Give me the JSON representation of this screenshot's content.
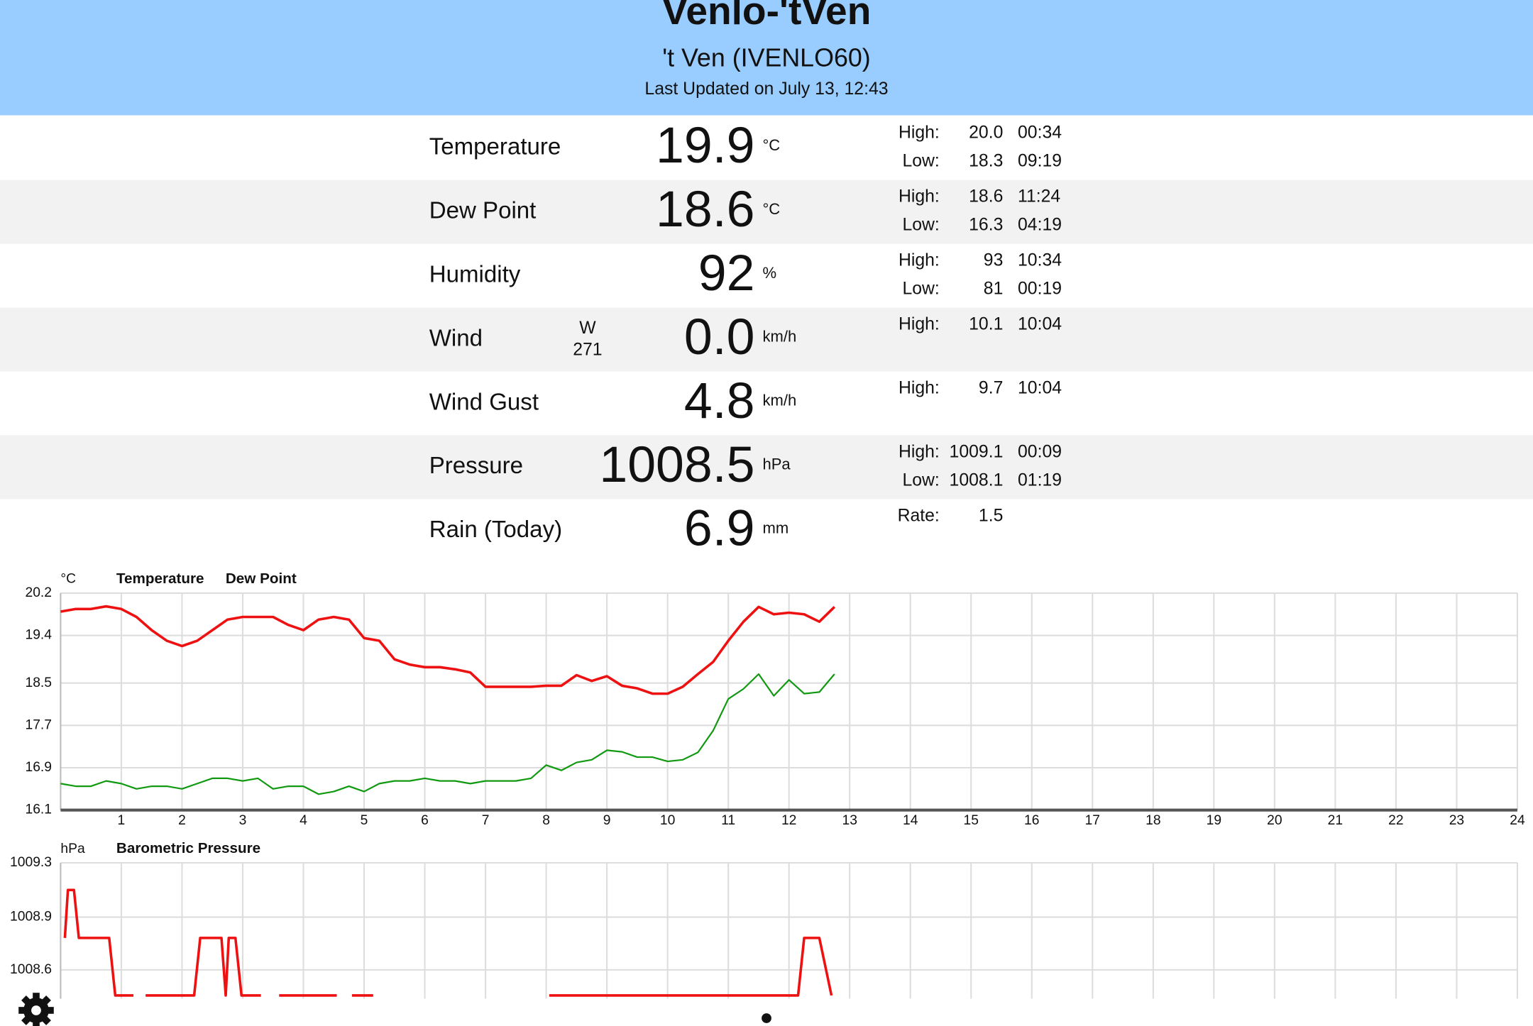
{
  "header": {
    "title": "Venlo-'tVen",
    "subtitle": "'t Ven (IVENLO60)",
    "updated": "Last Updated on July 13, 12:43"
  },
  "rows": [
    {
      "label": "Temperature",
      "value": "19.9",
      "unit": "°C",
      "stats": [
        {
          "label": "High:",
          "value": "20.0",
          "time": "00:34"
        },
        {
          "label": "Low:",
          "value": "18.3",
          "time": "09:19"
        }
      ]
    },
    {
      "label": "Dew Point",
      "value": "18.6",
      "unit": "°C",
      "stats": [
        {
          "label": "High:",
          "value": "18.6",
          "time": "11:24"
        },
        {
          "label": "Low:",
          "value": "16.3",
          "time": "04:19"
        }
      ]
    },
    {
      "label": "Humidity",
      "value": "92",
      "unit": "%",
      "stats": [
        {
          "label": "High:",
          "value": "93",
          "time": "10:34"
        },
        {
          "label": "Low:",
          "value": "81",
          "time": "00:19"
        }
      ]
    },
    {
      "label": "Wind",
      "direction": "W",
      "bearing": "271",
      "value": "0.0",
      "unit": "km/h",
      "stats": [
        {
          "label": "High:",
          "value": "10.1",
          "time": "10:04"
        }
      ]
    },
    {
      "label": "Wind Gust",
      "value": "4.8",
      "unit": "km/h",
      "stats": [
        {
          "label": "High:",
          "value": "9.7",
          "time": "10:04"
        }
      ]
    },
    {
      "label": "Pressure",
      "value": "1008.5",
      "unit": "hPa",
      "stats": [
        {
          "label": "High:",
          "value": "1009.1",
          "time": "00:09"
        },
        {
          "label": "Low:",
          "value": "1008.1",
          "time": "01:19"
        }
      ]
    },
    {
      "label": "Rain (Today)",
      "value": "6.9",
      "unit": "mm",
      "stats": [
        {
          "label": "Rate:",
          "value": "1.5"
        }
      ]
    }
  ],
  "chart_data": [
    {
      "type": "line",
      "ylabel": "°C",
      "x": [
        0,
        0.25,
        0.5,
        0.75,
        1,
        1.25,
        1.5,
        1.75,
        2,
        2.25,
        2.5,
        2.75,
        3,
        3.25,
        3.5,
        3.75,
        4,
        4.25,
        4.5,
        4.75,
        5,
        5.25,
        5.5,
        5.75,
        6,
        6.25,
        6.5,
        6.75,
        7,
        7.25,
        7.5,
        7.75,
        8,
        8.25,
        8.5,
        8.75,
        9,
        9.25,
        9.5,
        9.75,
        10,
        10.25,
        10.5,
        10.75,
        11,
        11.25,
        11.5,
        11.75,
        12,
        12.25,
        12.5,
        12.75
      ],
      "xlim": [
        0,
        24
      ],
      "xticks": [
        1,
        2,
        3,
        4,
        5,
        6,
        7,
        8,
        9,
        10,
        11,
        12,
        13,
        14,
        15,
        16,
        17,
        18,
        19,
        20,
        21,
        22,
        23,
        24
      ],
      "ylim": [
        16.1,
        20.2
      ],
      "yticks": [
        16.1,
        16.9,
        17.7,
        18.5,
        19.4,
        20.2
      ],
      "grid": true,
      "series": [
        {
          "name": "Temperature",
          "color": "#ee1111",
          "values": [
            19.85,
            19.9,
            19.9,
            19.95,
            19.9,
            19.75,
            19.5,
            19.3,
            19.2,
            19.3,
            19.5,
            19.7,
            19.75,
            19.75,
            19.75,
            19.6,
            19.5,
            19.7,
            19.75,
            19.7,
            19.35,
            19.3,
            18.95,
            18.85,
            18.8,
            18.8,
            18.76,
            18.7,
            18.43,
            18.43,
            18.43,
            18.43,
            18.45,
            18.45,
            18.65,
            18.54,
            18.63,
            18.45,
            18.4,
            18.3,
            18.3,
            18.43,
            18.67,
            18.9,
            19.3,
            19.66,
            19.94,
            19.8,
            19.83,
            19.8,
            19.66,
            19.94
          ]
        },
        {
          "name": "Dew Point",
          "color": "#119911",
          "values": [
            16.6,
            16.55,
            16.55,
            16.65,
            16.6,
            16.5,
            16.55,
            16.55,
            16.5,
            16.6,
            16.7,
            16.7,
            16.65,
            16.7,
            16.5,
            16.55,
            16.55,
            16.4,
            16.45,
            16.55,
            16.45,
            16.6,
            16.65,
            16.65,
            16.7,
            16.65,
            16.65,
            16.6,
            16.65,
            16.65,
            16.65,
            16.7,
            16.95,
            16.85,
            17.0,
            17.05,
            17.23,
            17.2,
            17.1,
            17.1,
            17.02,
            17.05,
            17.19,
            17.6,
            18.2,
            18.39,
            18.67,
            18.26,
            18.56,
            18.3,
            18.33,
            18.67
          ]
        }
      ]
    },
    {
      "type": "line",
      "ylabel": "hPa",
      "x": [
        0.07,
        0.12,
        0.22,
        0.3,
        0.8,
        0.9,
        1.2,
        1.3,
        1.4,
        2.2,
        2.3,
        2.65,
        2.72,
        2.77,
        2.88,
        2.98,
        3.3,
        3.4,
        3.6,
        4.55,
        4.7,
        4.8,
        5.15,
        6,
        8.05,
        12.15,
        12.25,
        12.5,
        12.7
      ],
      "xlim": [
        0,
        24
      ],
      "ylim": [
        1008.42,
        1009.27
      ],
      "yticks": [
        {
          "value": 1009.27,
          "label": "1009.3"
        },
        {
          "value": 1008.93,
          "label": "1008.9"
        },
        1008.6
      ],
      "grid": true,
      "series": [
        {
          "name": "Barometric Pressure",
          "color": "#ee1111",
          "values": [
            1008.8,
            1009.1,
            1009.1,
            1008.8,
            1008.8,
            1008.44,
            1008.44,
            null,
            1008.44,
            1008.44,
            1008.8,
            1008.8,
            1008.44,
            1008.8,
            1008.8,
            1008.44,
            1008.44,
            null,
            1008.44,
            1008.44,
            null,
            1008.44,
            1008.44,
            null,
            1008.44,
            1008.44,
            1008.8,
            1008.8,
            1008.44
          ]
        }
      ]
    }
  ]
}
